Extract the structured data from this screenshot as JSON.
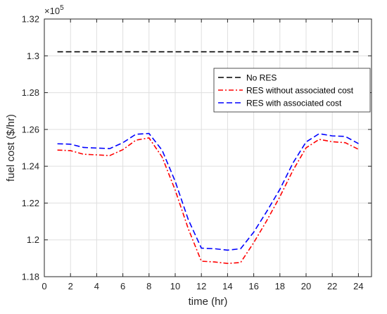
{
  "chart_data": {
    "type": "line",
    "xlabel": "time (hr)",
    "ylabel": "fuel cost ($/hr)",
    "exponent_label": "×10",
    "exponent_power": "5",
    "xlim": [
      0,
      25
    ],
    "ylim": [
      1.18,
      1.32
    ],
    "xticks": [
      0,
      2,
      4,
      6,
      8,
      10,
      12,
      14,
      16,
      18,
      20,
      22,
      24
    ],
    "xtick_labels": [
      "0",
      "2",
      "4",
      "6",
      "8",
      "10",
      "12",
      "14",
      "16",
      "18",
      "20",
      "22",
      "24"
    ],
    "yticks": [
      1.18,
      1.2,
      1.22,
      1.24,
      1.26,
      1.28,
      1.3,
      1.32
    ],
    "ytick_labels": [
      "1.18",
      "1.2",
      "1.22",
      "1.24",
      "1.26",
      "1.28",
      "1.3",
      "1.32"
    ],
    "grid": true,
    "legend_position": "top-right",
    "x": [
      1,
      2,
      3,
      4,
      5,
      6,
      7,
      8,
      9,
      10,
      11,
      12,
      13,
      14,
      15,
      16,
      17,
      18,
      19,
      20,
      21,
      22,
      23,
      24
    ],
    "series": [
      {
        "name": "No RES",
        "color": "#000000",
        "dash": "dashed",
        "values": [
          1.3022,
          1.3022,
          1.3022,
          1.3022,
          1.3022,
          1.3022,
          1.3022,
          1.3022,
          1.3022,
          1.3022,
          1.3022,
          1.3022,
          1.3022,
          1.3022,
          1.3022,
          1.3022,
          1.3022,
          1.3022,
          1.3022,
          1.3022,
          1.3022,
          1.3022,
          1.3022,
          1.3022
        ]
      },
      {
        "name": "RES without associated cost",
        "color": "#ff0000",
        "dash": "dashdot",
        "values": [
          1.2488,
          1.2485,
          1.2465,
          1.2462,
          1.2458,
          1.249,
          1.2542,
          1.2554,
          1.245,
          1.227,
          1.206,
          1.1884,
          1.188,
          1.1872,
          1.1877,
          1.1985,
          1.2105,
          1.2235,
          1.2378,
          1.25,
          1.2546,
          1.2533,
          1.2528,
          1.2492
        ]
      },
      {
        "name": "RES with associated cost",
        "color": "#0000ff",
        "dash": "dashed",
        "values": [
          1.2522,
          1.252,
          1.2502,
          1.2499,
          1.2496,
          1.2528,
          1.2574,
          1.2578,
          1.2487,
          1.2318,
          1.211,
          1.1955,
          1.1952,
          1.1944,
          1.1952,
          1.2042,
          1.2155,
          1.2275,
          1.2418,
          1.2532,
          1.2577,
          1.2565,
          1.2562,
          1.2523
        ]
      }
    ]
  }
}
